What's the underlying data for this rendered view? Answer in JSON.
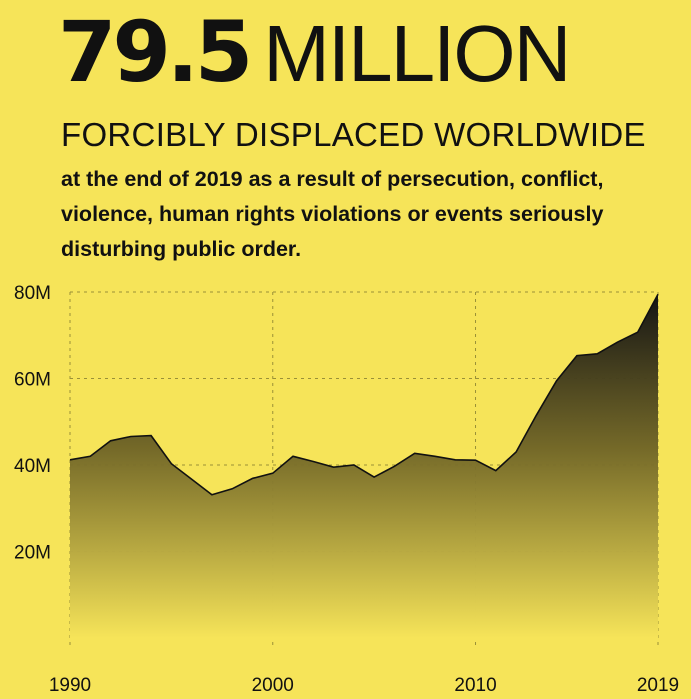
{
  "header": {
    "number": "79.5",
    "unit": "MILLION",
    "subtitle": "FORCIBLY DISPLACED WORLDWIDE",
    "description": "at the end of 2019 as a result of persecution, conflict, violence, human rights violations or events seriously disturbing public order."
  },
  "colors": {
    "background": "#f6e459",
    "area_top": "#141414",
    "text": "#111111"
  },
  "chart_data": {
    "type": "area",
    "title": "",
    "xlabel": "",
    "ylabel": "",
    "ylim": [
      0,
      80
    ],
    "y_ticks": [
      20,
      40,
      60,
      80
    ],
    "y_tick_labels": [
      "20M",
      "40M",
      "60M",
      "80M"
    ],
    "x_ticks": [
      1990,
      2000,
      2010,
      2019
    ],
    "x_tick_labels": [
      "1990",
      "2000",
      "2010",
      "2019"
    ],
    "grid": "horizontal dashed, vertical dashed at x ticks",
    "x": [
      1990,
      1991,
      1992,
      1993,
      1994,
      1995,
      1996,
      1997,
      1998,
      1999,
      2000,
      2001,
      2002,
      2003,
      2004,
      2005,
      2006,
      2007,
      2008,
      2009,
      2010,
      2011,
      2012,
      2013,
      2014,
      2015,
      2016,
      2017,
      2018,
      2019
    ],
    "values": [
      41.2,
      42.0,
      45.6,
      46.6,
      46.8,
      40.3,
      36.7,
      33.1,
      34.5,
      36.9,
      38.1,
      42.0,
      40.8,
      39.5,
      40.0,
      37.2,
      39.7,
      42.7,
      42.0,
      41.2,
      41.1,
      38.7,
      43.0,
      51.5,
      59.5,
      65.3,
      65.7,
      68.4,
      70.7,
      79.5
    ]
  }
}
